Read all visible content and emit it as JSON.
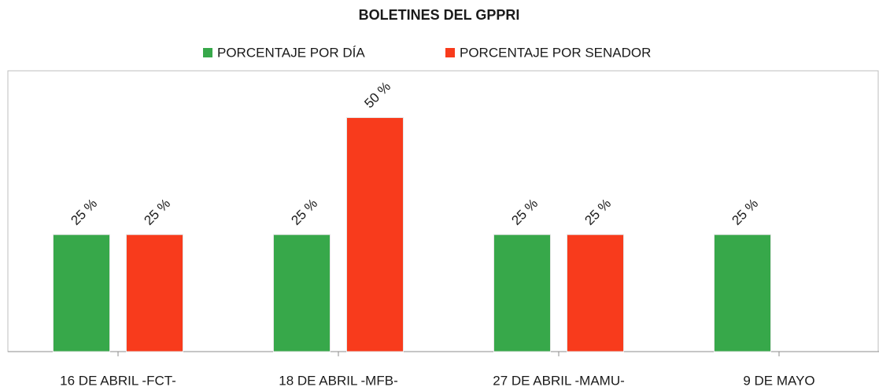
{
  "chart_data": {
    "type": "bar",
    "title": "BOLETINES DEL GPPRI",
    "categories": [
      "16 DE ABRIL -FCT-",
      "18 DE ABRIL -MFB-",
      "27 DE ABRIL -MAMU-",
      "9 DE MAYO"
    ],
    "series": [
      {
        "name": "PORCENTAJE POR DÍA",
        "color": "#37a84a",
        "values": [
          25,
          25,
          25,
          25
        ],
        "value_labels": [
          "25 %",
          "25 %",
          "25 %",
          "25 %"
        ]
      },
      {
        "name": "PORCENTAJE POR SENADOR",
        "color": "#f83b1c",
        "values": [
          25,
          50,
          25,
          null
        ],
        "value_labels": [
          "25 %",
          "50 %",
          "25 %",
          null
        ]
      }
    ],
    "ylim": [
      0,
      60
    ],
    "legend": "top"
  }
}
